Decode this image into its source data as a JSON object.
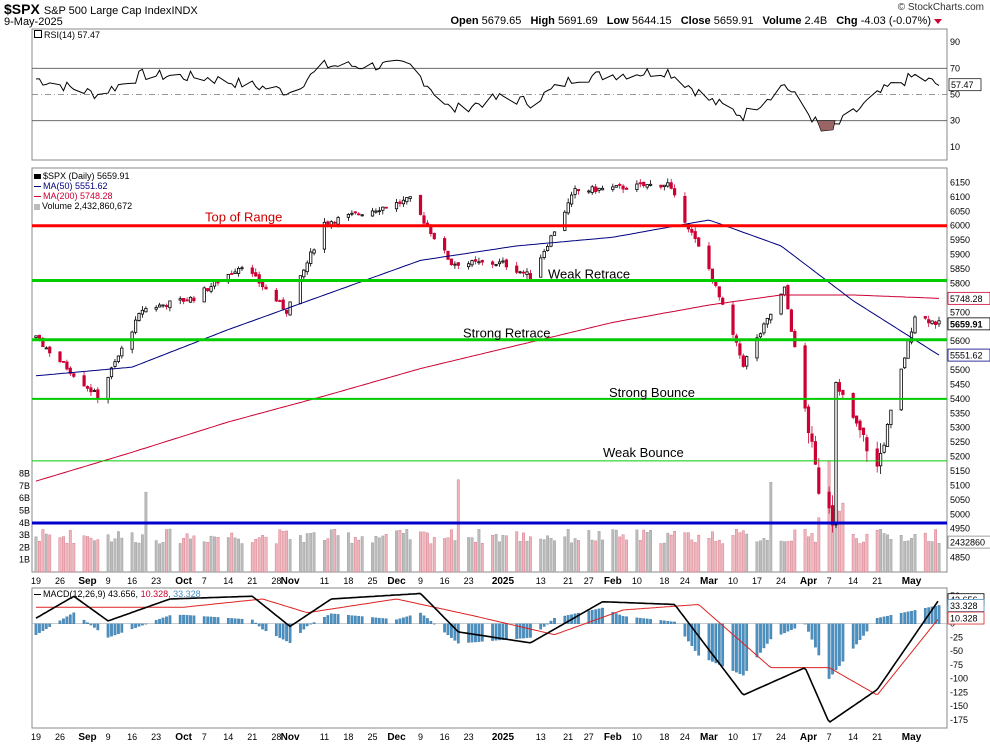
{
  "header": {
    "symbol": "$SPX",
    "description": "S&P 500 Large Cap Index",
    "exchange": "INDX",
    "date": "9-May-2025",
    "open": "5679.65",
    "high": "5691.69",
    "low": "5644.15",
    "close": "5659.91",
    "volume": "2.4B",
    "change": "-4.03 (-0.07%)",
    "credit": "© StockCharts.com",
    "labels": {
      "open": "Open",
      "high": "High",
      "low": "Low",
      "close": "Close",
      "volume": "Volume",
      "chg": "Chg"
    }
  },
  "legends": {
    "rsi": "RSI(14) 57.47",
    "price": "$SPX (Daily) 5659.91",
    "ma50": "MA(50) 5551.62",
    "ma200": "MA(200) 5748.28",
    "volume": "Volume 2,432,860,672",
    "macd_a": "MACD(12,26,9) 43.656,",
    "macd_b": "10.328,",
    "macd_c": "33.328"
  },
  "colors": {
    "up": "#000000",
    "down": "#cc0033",
    "ma50": "#000080",
    "ma200": "#cc0033",
    "vol_up": "#bbbbbb",
    "vol_down": "#f0b4bc",
    "range_top": "#ff0000",
    "green_lines": "#00cc00",
    "support_5000": "#0000cc",
    "macd_hist": "#4a90c0"
  },
  "chart_data": [
    {
      "type": "line",
      "title": "RSI(14) 57.47",
      "ylim": [
        0,
        100
      ],
      "y_ticks": [
        10,
        30,
        50,
        70,
        90
      ],
      "current_value": 57.47,
      "oversold_dip_date": "2025-04-07",
      "series": [
        {
          "name": "RSI(14)",
          "x": [
            "2024-08-19",
            "2024-09-06",
            "2024-09-19",
            "2024-10-07",
            "2024-11-01",
            "2024-11-11",
            "2024-12-06",
            "2024-12-18",
            "2025-01-02",
            "2025-01-10",
            "2025-01-23",
            "2025-02-19",
            "2025-03-03",
            "2025-03-13",
            "2025-03-25",
            "2025-04-04",
            "2025-04-08",
            "2025-04-24",
            "2025-05-02",
            "2025-05-09"
          ],
          "values": [
            62,
            50,
            65,
            63,
            52,
            72,
            72,
            38,
            48,
            44,
            63,
            68,
            46,
            34,
            58,
            26,
            24,
            55,
            64,
            57.47
          ]
        }
      ]
    },
    {
      "type": "candlestick",
      "title": "$SPX (Daily) 5659.91",
      "ylim": [
        4800,
        6200
      ],
      "y_ticks": [
        4850,
        4900,
        4950,
        5000,
        5050,
        5100,
        5150,
        5200,
        5250,
        5300,
        5350,
        5400,
        5450,
        5500,
        5550,
        5600,
        5650,
        5700,
        5750,
        5800,
        5850,
        5900,
        5950,
        6000,
        6050,
        6100,
        6150
      ],
      "x_tick_labels": [
        "19",
        "26",
        "Sep",
        "9",
        "16",
        "23",
        "Oct",
        "7",
        "14",
        "21",
        "28",
        "Nov",
        "11",
        "18",
        "25",
        "Dec",
        "9",
        "16",
        "23",
        "2025",
        "13",
        "21",
        "27",
        "Feb",
        "10",
        "18",
        "24",
        "Mar",
        "10",
        "17",
        "24",
        "Apr",
        "7",
        "14",
        "21",
        "May"
      ],
      "last_price": 5659.91,
      "price_anchors": {
        "x": [
          "2024-08-19",
          "2024-09-06",
          "2024-09-19",
          "2024-10-04",
          "2024-10-18",
          "2024-10-31",
          "2024-11-11",
          "2024-12-06",
          "2024-12-18",
          "2025-01-02",
          "2025-01-10",
          "2025-01-23",
          "2025-02-19",
          "2025-03-03",
          "2025-03-13",
          "2025-03-25",
          "2025-04-04",
          "2025-04-08",
          "2025-04-09",
          "2025-04-21",
          "2025-05-02",
          "2025-05-09"
        ],
        "values": [
          5610,
          5408,
          5710,
          5750,
          5865,
          5705,
          6010,
          6090,
          5870,
          5870,
          5825,
          6120,
          6145,
          5850,
          5520,
          5780,
          5090,
          4980,
          5460,
          5160,
          5690,
          5659.91
        ]
      },
      "series": [
        {
          "name": "MA(50)",
          "last": 5551.62,
          "x": [
            "2024-08-19",
            "2024-09-16",
            "2024-10-14",
            "2024-11-11",
            "2024-12-09",
            "2025-01-06",
            "2025-02-03",
            "2025-03-03",
            "2025-03-24",
            "2025-04-14",
            "2025-05-09"
          ],
          "values": [
            5480,
            5510,
            5640,
            5760,
            5880,
            5930,
            5960,
            6020,
            5930,
            5740,
            5551.62
          ]
        },
        {
          "name": "MA(200)",
          "last": 5748.28,
          "x": [
            "2024-08-19",
            "2024-09-16",
            "2024-10-14",
            "2024-11-11",
            "2024-12-09",
            "2025-01-06",
            "2025-02-03",
            "2025-03-03",
            "2025-03-24",
            "2025-04-14",
            "2025-05-09"
          ],
          "values": [
            5115,
            5215,
            5320,
            5410,
            5505,
            5585,
            5665,
            5725,
            5760,
            5760,
            5748.28
          ]
        }
      ],
      "levels": [
        {
          "label": "Top of Range",
          "value": 6000
        },
        {
          "label": "Weak Retrace",
          "value": 5810
        },
        {
          "label": "Strong Retrace",
          "value": 5605
        },
        {
          "label": "Strong Bounce",
          "value": 5400
        },
        {
          "label": "Weak Bounce",
          "value": 5185
        },
        {
          "label": "",
          "value": 4970
        }
      ]
    },
    {
      "type": "bar",
      "title": "Volume 2,432,860,672",
      "y_tick_labels": [
        "1B",
        "2B",
        "3B",
        "4B",
        "5B",
        "6B",
        "7B",
        "8B"
      ],
      "last_value": 2432860672,
      "last_value_label": "2432860",
      "spikes": [
        {
          "x": "2024-09-20",
          "value": "6.5B"
        },
        {
          "x": "2024-12-20",
          "value": "7.5B"
        },
        {
          "x": "2025-03-21",
          "value": "7.3B"
        },
        {
          "x": "2025-04-07",
          "value": "9.0B"
        }
      ],
      "typical_range": [
        "2B",
        "3.5B"
      ]
    },
    {
      "type": "line",
      "title": "MACD(12,26,9) 43.656, 10.328, 33.328",
      "y_ticks": [
        -175,
        -150,
        -125,
        -100,
        -75,
        -50,
        -25,
        0,
        25,
        50
      ],
      "ylim": [
        -190,
        65
      ],
      "series": [
        {
          "name": "MACD",
          "last": 43.656,
          "x": [
            "2024-08-19",
            "2024-08-30",
            "2024-09-09",
            "2024-09-27",
            "2024-10-21",
            "2024-11-01",
            "2024-11-13",
            "2024-12-09",
            "2024-12-20",
            "2025-01-10",
            "2025-01-31",
            "2025-02-21",
            "2025-03-13",
            "2025-03-31",
            "2025-04-07",
            "2025-04-21",
            "2025-05-09"
          ],
          "values": [
            10,
            50,
            5,
            45,
            50,
            -5,
            45,
            55,
            -15,
            -35,
            40,
            35,
            -130,
            -80,
            -180,
            -120,
            43.656
          ]
        },
        {
          "name": "Signal",
          "last": 10.328,
          "x": [
            "2024-08-19",
            "2024-09-09",
            "2024-10-01",
            "2024-10-24",
            "2024-11-06",
            "2024-12-02",
            "2024-12-24",
            "2025-01-17",
            "2025-02-06",
            "2025-02-28",
            "2025-03-21",
            "2025-04-07",
            "2025-04-21",
            "2025-05-09"
          ],
          "values": [
            30,
            30,
            30,
            45,
            20,
            45,
            15,
            -20,
            25,
            35,
            -80,
            -80,
            -130,
            10.328
          ]
        },
        {
          "name": "Histogram",
          "last": 33.328
        }
      ]
    }
  ]
}
